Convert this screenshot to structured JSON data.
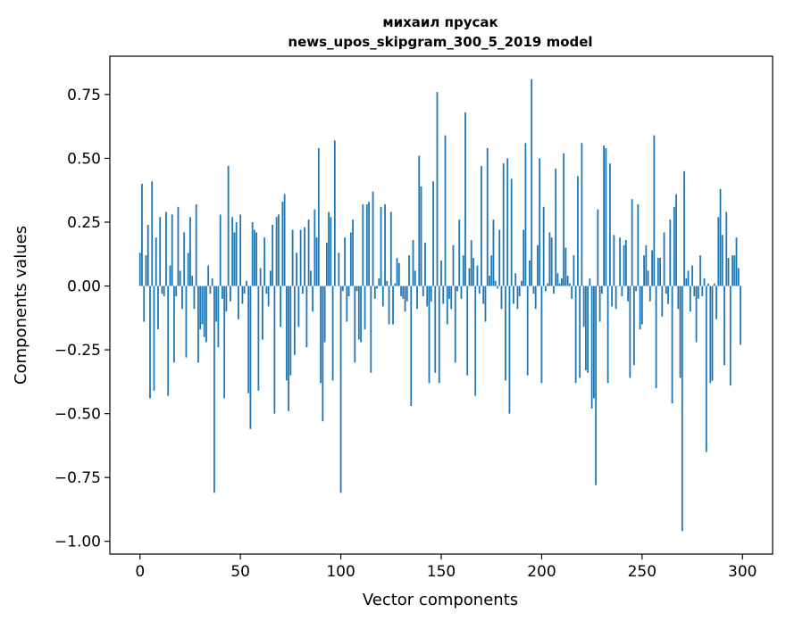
{
  "chart_data": {
    "type": "bar",
    "title": "михаил прусак",
    "subtitle": "news_upos_skipgram_300_5_2019 model",
    "xlabel": "Vector components",
    "ylabel": "Components values",
    "xlim": [
      -15,
      315
    ],
    "ylim": [
      -1.05,
      0.9
    ],
    "xticks": [
      0,
      50,
      100,
      150,
      200,
      250,
      300
    ],
    "xtick_labels": [
      "0",
      "50",
      "100",
      "150",
      "200",
      "250",
      "300"
    ],
    "yticks": [
      0.75,
      0.5,
      0.25,
      0.0,
      -0.25,
      -0.5,
      -0.75,
      -1.0
    ],
    "ytick_labels": [
      "0.75",
      "0.50",
      "0.25",
      "0.00",
      "−0.25",
      "−0.50",
      "−0.75",
      "−1.00"
    ],
    "grid": false,
    "bar_color": "#1f77b4",
    "values": [
      0.13,
      0.4,
      -0.14,
      0.12,
      0.24,
      -0.44,
      0.41,
      -0.41,
      0.19,
      -0.17,
      0.27,
      -0.03,
      -0.04,
      0.29,
      -0.43,
      0.08,
      0.28,
      -0.3,
      -0.04,
      0.31,
      0.06,
      -0.09,
      0.21,
      -0.28,
      0.13,
      0.27,
      0.04,
      -0.09,
      0.32,
      -0.3,
      -0.17,
      -0.15,
      -0.2,
      -0.22,
      0.08,
      -0.03,
      0.03,
      -0.81,
      -0.14,
      -0.24,
      0.28,
      -0.05,
      -0.44,
      -0.1,
      0.47,
      -0.06,
      0.27,
      0.21,
      0.25,
      -0.13,
      0.28,
      -0.07,
      -0.03,
      0.02,
      -0.42,
      -0.56,
      0.25,
      0.22,
      0.21,
      -0.41,
      0.07,
      -0.21,
      0.19,
      -0.03,
      -0.08,
      0.06,
      0.24,
      -0.5,
      0.27,
      0.28,
      -0.16,
      0.33,
      0.36,
      -0.37,
      -0.49,
      -0.35,
      0.22,
      -0.27,
      0.13,
      -0.16,
      0.22,
      -0.03,
      0.23,
      -0.24,
      0.26,
      0.06,
      -0.1,
      0.3,
      0.19,
      0.54,
      -0.38,
      -0.53,
      -0.22,
      0.17,
      0.29,
      0.27,
      -0.37,
      0.57,
      0.0,
      0.13,
      -0.81,
      -0.02,
      0.19,
      -0.14,
      -0.04,
      0.21,
      0.26,
      -0.3,
      -0.02,
      -0.21,
      -0.22,
      0.32,
      -0.17,
      0.32,
      0.33,
      -0.34,
      0.37,
      -0.05,
      -0.01,
      0.03,
      0.31,
      -0.08,
      0.32,
      0.02,
      -0.15,
      0.29,
      -0.15,
      0.01,
      0.11,
      0.09,
      -0.04,
      -0.05,
      -0.1,
      -0.06,
      0.12,
      -0.47,
      0.18,
      0.06,
      -0.09,
      0.51,
      0.39,
      -0.04,
      0.17,
      -0.08,
      -0.38,
      -0.06,
      0.41,
      -0.34,
      0.76,
      -0.38,
      0.1,
      -0.07,
      0.59,
      -0.15,
      -0.05,
      -0.09,
      0.16,
      -0.3,
      -0.02,
      0.26,
      -0.05,
      0.12,
      0.68,
      -0.35,
      0.07,
      0.18,
      0.11,
      -0.43,
      0.08,
      -0.03,
      0.47,
      -0.07,
      -0.14,
      0.54,
      0.04,
      0.12,
      0.26,
      0.02,
      -0.01,
      0.22,
      -0.09,
      0.48,
      -0.37,
      0.5,
      -0.5,
      0.42,
      -0.07,
      0.05,
      -0.09,
      -0.04,
      0.02,
      0.22,
      0.56,
      -0.35,
      0.1,
      0.81,
      -0.03,
      -0.09,
      0.16,
      0.5,
      -0.38,
      0.31,
      -0.02,
      0.01,
      0.21,
      0.19,
      -0.03,
      0.46,
      0.05,
      0.01,
      0.03,
      0.52,
      0.15,
      0.04,
      0.01,
      -0.05,
      0.12,
      -0.38,
      0.43,
      -0.36,
      0.56,
      -0.16,
      -0.33,
      -0.34,
      0.03,
      -0.48,
      -0.44,
      -0.78,
      0.3,
      -0.14,
      -0.03,
      0.55,
      0.54,
      -0.38,
      0.48,
      -0.08,
      0.2,
      -0.09,
      0.0,
      0.19,
      -0.04,
      0.16,
      0.18,
      -0.06,
      -0.36,
      0.34,
      -0.31,
      -0.02,
      0.32,
      -0.17,
      -0.15,
      0.12,
      0.16,
      0.06,
      -0.06,
      0.14,
      0.59,
      -0.4,
      0.11,
      0.11,
      -0.12,
      0.21,
      -0.03,
      -0.07,
      0.26,
      -0.46,
      0.31,
      0.36,
      -0.09,
      -0.36,
      -0.96,
      0.45,
      0.03,
      0.06,
      -0.1,
      0.08,
      -0.04,
      -0.22,
      -0.05,
      0.12,
      -0.04,
      0.03,
      -0.65,
      0.01,
      -0.38,
      -0.37,
      0.01,
      -0.13,
      0.27,
      0.38,
      0.2,
      -0.31,
      0.29,
      0.11,
      -0.39,
      0.12,
      0.12,
      0.19,
      0.07,
      -0.23
    ]
  }
}
